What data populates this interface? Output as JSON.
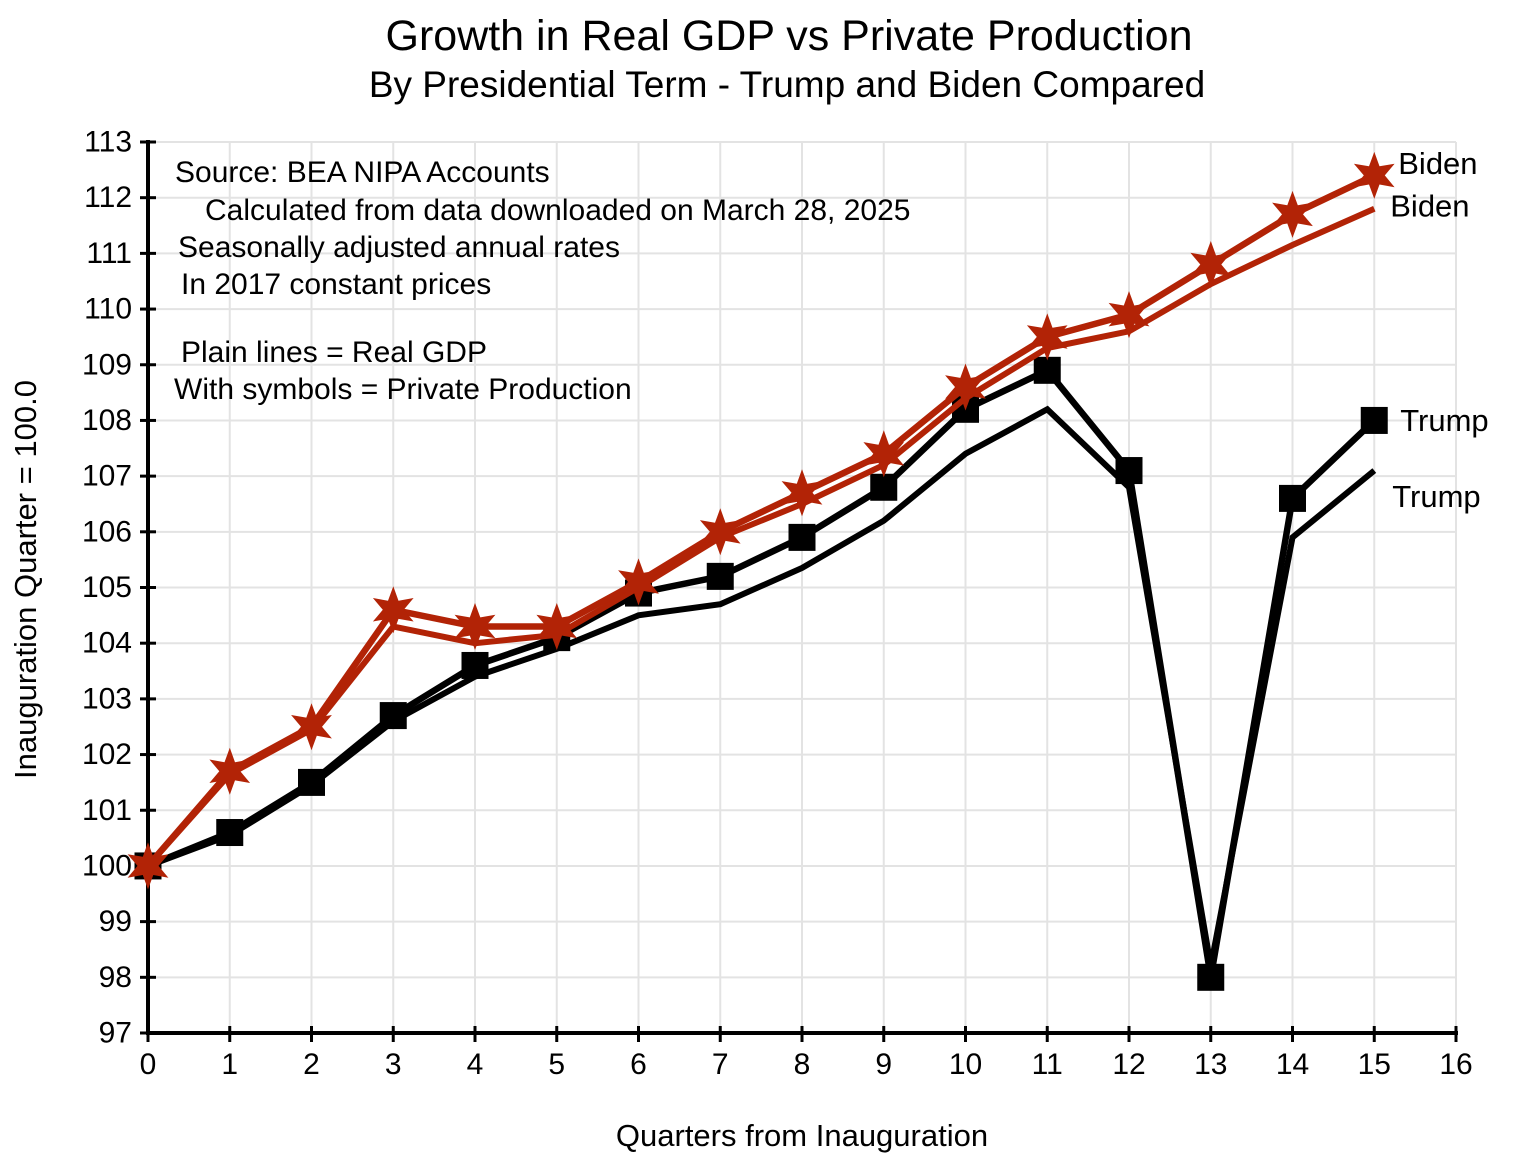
{
  "title": "Growth in Real GDP vs Private Production",
  "subtitle": "By Presidential Term - Trump and Biden Compared",
  "annotations": {
    "source_line1": "Source:  BEA NIPA Accounts",
    "source_line2": "Calculated from data downloaded on March 28, 2025",
    "source_line3": "Seasonally adjusted annual rates",
    "source_line4": "In 2017 constant prices",
    "legend_line1": "Plain lines = Real GDP",
    "legend_line2": "With symbols = Private Production"
  },
  "chart_data": {
    "type": "line",
    "title": "Growth in Real GDP vs Private Production",
    "subtitle": "By Presidential Term - Trump and Biden Compared",
    "xlabel": "Quarters from Inauguration",
    "ylabel": "Inauguration Quarter = 100.0",
    "xlim": [
      0,
      16
    ],
    "ylim": [
      97,
      113
    ],
    "xticks": [
      0,
      1,
      2,
      3,
      4,
      5,
      6,
      7,
      8,
      9,
      10,
      11,
      12,
      13,
      14,
      15,
      16
    ],
    "yticks": [
      97,
      98,
      99,
      100,
      101,
      102,
      103,
      104,
      105,
      106,
      107,
      108,
      109,
      110,
      111,
      112,
      113
    ],
    "grid": true,
    "grid_color": "#E3E3E3",
    "axis_color": "#000000",
    "x": [
      0,
      1,
      2,
      3,
      4,
      5,
      6,
      7,
      8,
      9,
      10,
      11,
      12,
      13,
      14,
      15
    ],
    "series": [
      {
        "id": "trump-real-gdp",
        "name": "Trump Real GDP",
        "label": "Trump",
        "color": "#000000",
        "marker": "none",
        "values": [
          100.0,
          100.55,
          101.45,
          102.6,
          103.4,
          103.9,
          104.5,
          104.7,
          105.35,
          106.2,
          107.4,
          108.2,
          106.8,
          98.2,
          105.9,
          107.1
        ]
      },
      {
        "id": "trump-private-production",
        "name": "Trump Private Production",
        "label": "Trump",
        "color": "#000000",
        "marker": "square",
        "values": [
          100.0,
          100.6,
          101.5,
          102.7,
          103.6,
          104.1,
          104.9,
          105.2,
          105.9,
          106.8,
          108.2,
          108.9,
          107.1,
          98.0,
          106.6,
          108.0
        ]
      },
      {
        "id": "biden-real-gdp",
        "name": "Biden Real GDP",
        "label": "Biden",
        "color": "#B22306",
        "marker": "none",
        "values": [
          100.0,
          101.65,
          102.45,
          104.3,
          104.0,
          104.15,
          105.0,
          105.9,
          106.5,
          107.2,
          108.4,
          109.3,
          109.6,
          110.45,
          111.15,
          111.8
        ]
      },
      {
        "id": "biden-private-production",
        "name": "Biden Private Production",
        "label": "Biden",
        "color": "#B22306",
        "marker": "star",
        "values": [
          100.0,
          101.7,
          102.5,
          104.6,
          104.3,
          104.3,
          105.1,
          106.0,
          106.7,
          107.4,
          108.6,
          109.5,
          109.9,
          110.8,
          111.7,
          112.4
        ]
      }
    ]
  }
}
